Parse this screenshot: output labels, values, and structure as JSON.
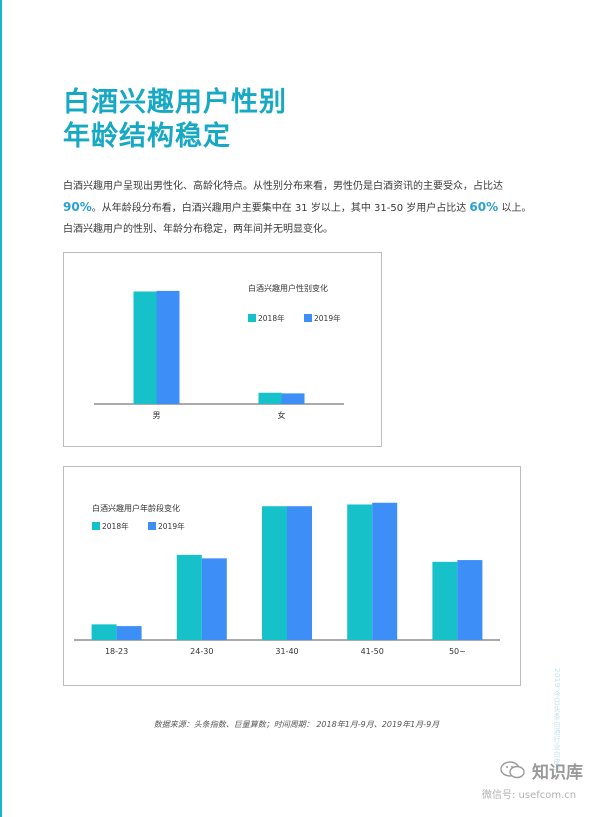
{
  "title": {
    "line1": "白酒兴趣用户性别",
    "line2": "年龄结构稳定"
  },
  "body": {
    "p1": "白酒兴趣用户呈现出男性化、高龄化特点。从性别分布来看，男性仍是白酒资讯的主要受众，占比达 ",
    "hl1": "90%",
    "p2": "。从年龄段分布看，白酒兴趣用户主要集中在 31 岁以上，其中 31-50 岁用户占比达 ",
    "hl2": "60%",
    "p3": " 以上。白酒兴趣用户的性别、年龄分布稳定，两年间并无明显变化。"
  },
  "colors": {
    "accent": "#17a9c4",
    "series2018": "#17c1c9",
    "series2019": "#3e8ef7"
  },
  "chart_data": [
    {
      "type": "bar",
      "title": "白酒兴趣用户性别变化",
      "categories": [
        "男",
        "女"
      ],
      "series": [
        {
          "name": "2018年",
          "values": [
            90,
            9
          ]
        },
        {
          "name": "2019年",
          "values": [
            90.5,
            8.5
          ]
        }
      ],
      "ylim": [
        0,
        100
      ],
      "legend": "top-right",
      "grid": false
    },
    {
      "type": "bar",
      "title": "白酒兴趣用户年龄段变化",
      "categories": [
        "18-23",
        "24-30",
        "31-40",
        "41-50",
        "50~"
      ],
      "series": [
        {
          "name": "2018年",
          "values": [
            4.5,
            24.5,
            38.5,
            39,
            22.5
          ]
        },
        {
          "name": "2019年",
          "values": [
            4,
            23.5,
            38.5,
            39.5,
            23
          ]
        }
      ],
      "ylim": [
        0,
        40
      ],
      "legend": "top-left",
      "grid": false
    }
  ],
  "footer": {
    "source": "数据来源：头条指数、巨量算数；时间周期： 2018年1月-9月、2019年1月-9月",
    "side": "2019 今日头条白酒行业白皮书"
  },
  "watermark": {
    "name": "知识库",
    "id": "微信号: usefcom.cn"
  }
}
